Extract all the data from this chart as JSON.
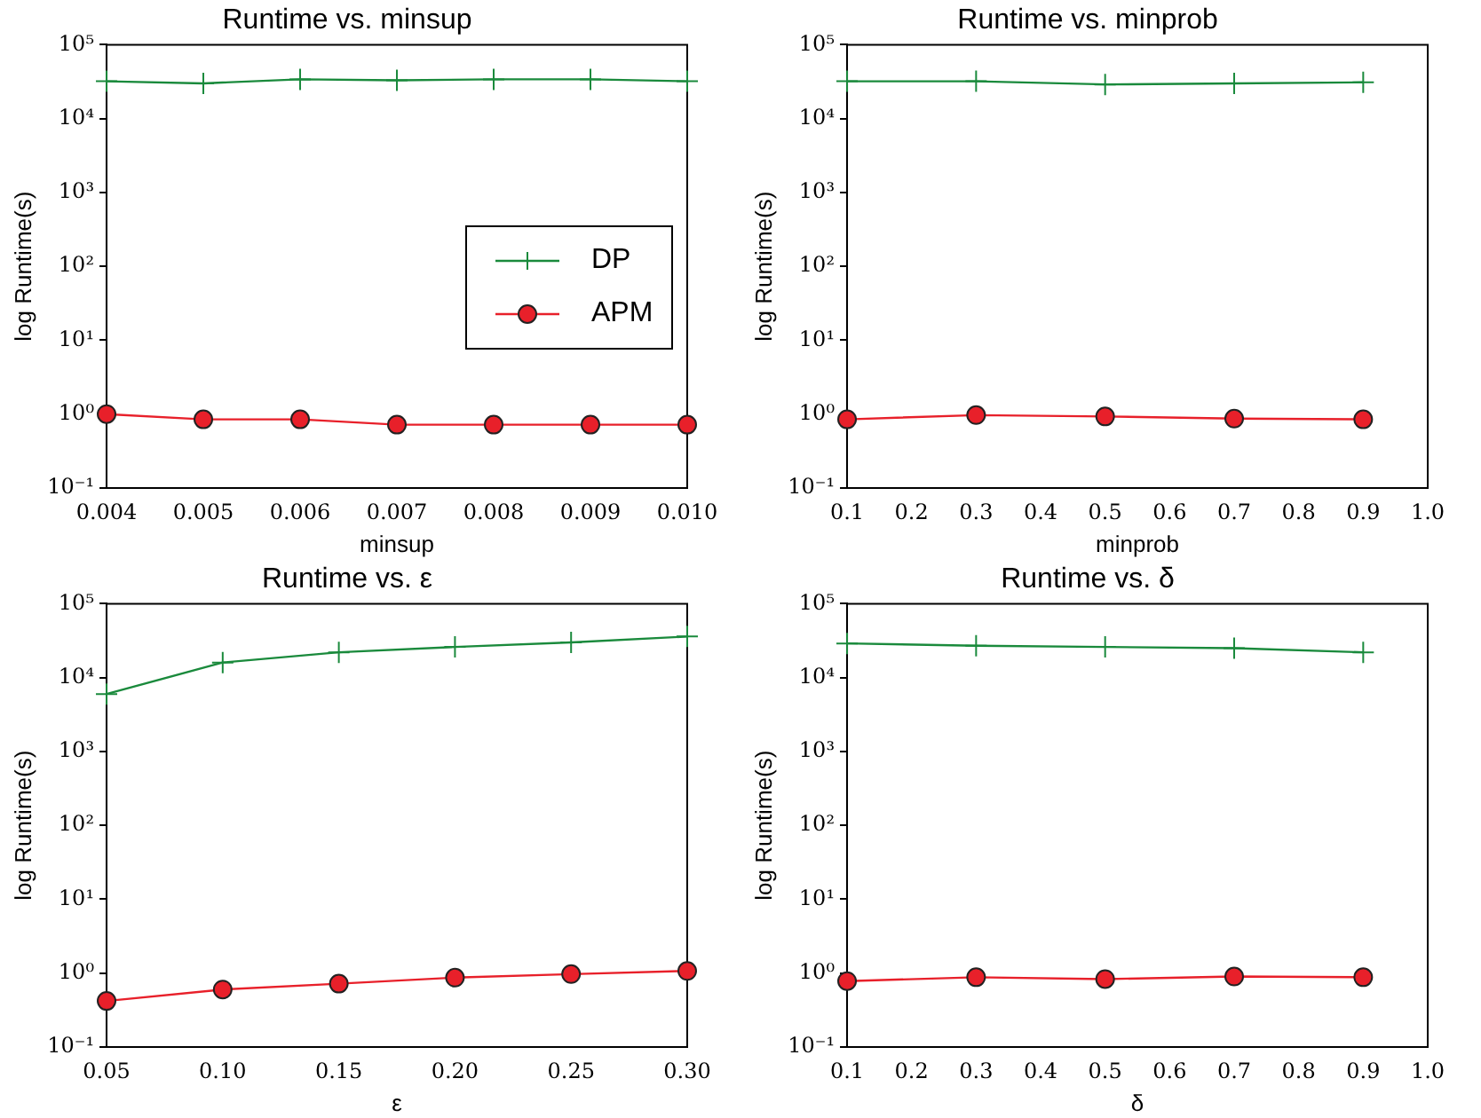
{
  "chart_data": [
    {
      "type": "line",
      "title": "Runtime vs. minsup",
      "xlabel": "minsup",
      "ylabel": "log Runtime(s)",
      "log": "y",
      "grid": false,
      "legend": "right",
      "xlim": [
        0.004,
        0.01
      ],
      "xticks": [
        0.004,
        0.005,
        0.006,
        0.007,
        0.008,
        0.009,
        {
          "value": 0.01,
          "label": "0.010"
        }
      ],
      "ylim": [
        0.1,
        100000
      ],
      "yticks": [
        {
          "value": 0.1,
          "label": "10⁻¹"
        },
        {
          "value": 1,
          "label": "10⁰"
        },
        {
          "value": 10,
          "label": "10¹"
        },
        {
          "value": 100,
          "label": "10²"
        },
        {
          "value": 1000,
          "label": "10³"
        },
        {
          "value": 10000,
          "label": "10⁴"
        },
        {
          "value": 100000,
          "label": "10⁵"
        }
      ],
      "x": [
        0.004,
        0.005,
        0.006,
        0.007,
        0.008,
        0.009,
        0.01
      ],
      "series": [
        {
          "name": "DP",
          "color": "#1a8a3c",
          "marker": "cross",
          "values": [
            32000,
            30000,
            34000,
            33000,
            34000,
            34000,
            32000
          ]
        },
        {
          "name": "APM",
          "color": "#e8202a",
          "marker": "circle",
          "values": [
            1.0,
            0.85,
            0.85,
            0.72,
            0.72,
            0.72,
            0.72
          ]
        }
      ]
    },
    {
      "type": "line",
      "title": "Runtime vs. minprob",
      "xlabel": "minprob",
      "ylabel": "log Runtime(s)",
      "log": "y",
      "grid": false,
      "xlim": [
        0.1,
        1.0
      ],
      "xticks": [
        0.1,
        0.2,
        0.3,
        0.4,
        0.5,
        0.6,
        0.7,
        0.8,
        0.9,
        {
          "value": 1.0,
          "label": "1.0"
        }
      ],
      "ylim": [
        0.1,
        100000
      ],
      "yticks": [
        {
          "value": 0.1,
          "label": "10⁻¹"
        },
        {
          "value": 1,
          "label": "10⁰"
        },
        {
          "value": 10,
          "label": "10¹"
        },
        {
          "value": 100,
          "label": "10²"
        },
        {
          "value": 1000,
          "label": "10³"
        },
        {
          "value": 10000,
          "label": "10⁴"
        },
        {
          "value": 100000,
          "label": "10⁵"
        }
      ],
      "x": [
        0.1,
        0.3,
        0.5,
        0.7,
        0.9
      ],
      "series": [
        {
          "color": "#1a8a3c",
          "marker": "cross",
          "values": [
            32000,
            32000,
            29000,
            30000,
            31000
          ]
        },
        {
          "color": "#e8202a",
          "marker": "circle",
          "values": [
            0.85,
            0.97,
            0.93,
            0.87,
            0.85
          ]
        }
      ]
    },
    {
      "type": "line",
      "title": "Runtime vs. ε",
      "xlabel": "ε",
      "ylabel": "log Runtime(s)",
      "log": "y",
      "grid": false,
      "xlim": [
        0.05,
        0.3
      ],
      "xticks": [
        0.05,
        {
          "value": 0.1,
          "label": "0.10"
        },
        0.15,
        {
          "value": 0.2,
          "label": "0.20"
        },
        0.25,
        {
          "value": 0.3,
          "label": "0.30"
        }
      ],
      "ylim": [
        0.1,
        100000
      ],
      "yticks": [
        {
          "value": 0.1,
          "label": "10⁻¹"
        },
        {
          "value": 1,
          "label": "10⁰"
        },
        {
          "value": 10,
          "label": "10¹"
        },
        {
          "value": 100,
          "label": "10²"
        },
        {
          "value": 1000,
          "label": "10³"
        },
        {
          "value": 10000,
          "label": "10⁴"
        },
        {
          "value": 100000,
          "label": "10⁵"
        }
      ],
      "x": [
        0.05,
        0.1,
        0.15,
        0.2,
        0.25,
        0.3
      ],
      "series": [
        {
          "color": "#1a8a3c",
          "marker": "cross",
          "values": [
            6000,
            16000,
            22000,
            26000,
            30000,
            36000
          ]
        },
        {
          "color": "#e8202a",
          "marker": "circle",
          "values": [
            0.42,
            0.6,
            0.72,
            0.87,
            0.97,
            1.07
          ]
        }
      ]
    },
    {
      "type": "line",
      "title": "Runtime vs. δ",
      "xlabel": "δ",
      "ylabel": "log Runtime(s)",
      "log": "y",
      "grid": false,
      "xlim": [
        0.1,
        1.0
      ],
      "xticks": [
        0.1,
        0.2,
        0.3,
        0.4,
        0.5,
        0.6,
        0.7,
        0.8,
        0.9,
        {
          "value": 1.0,
          "label": "1.0"
        }
      ],
      "ylim": [
        0.1,
        100000
      ],
      "yticks": [
        {
          "value": 0.1,
          "label": "10⁻¹"
        },
        {
          "value": 1,
          "label": "10⁰"
        },
        {
          "value": 10,
          "label": "10¹"
        },
        {
          "value": 100,
          "label": "10²"
        },
        {
          "value": 1000,
          "label": "10³"
        },
        {
          "value": 10000,
          "label": "10⁴"
        },
        {
          "value": 100000,
          "label": "10⁵"
        }
      ],
      "x": [
        0.1,
        0.3,
        0.5,
        0.7,
        0.9
      ],
      "series": [
        {
          "color": "#1a8a3c",
          "marker": "cross",
          "values": [
            29000,
            27000,
            26000,
            25000,
            22000
          ]
        },
        {
          "color": "#e8202a",
          "marker": "circle",
          "values": [
            0.78,
            0.88,
            0.83,
            0.9,
            0.88
          ]
        }
      ]
    }
  ]
}
